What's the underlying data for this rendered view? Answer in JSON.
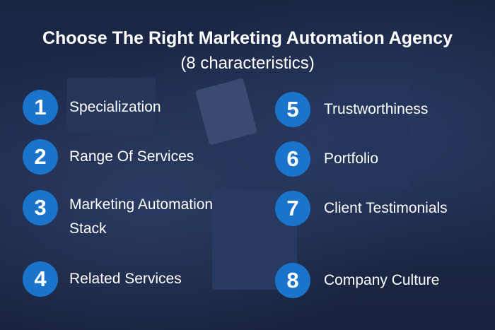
{
  "title": "Choose The Right Marketing Automation Agency",
  "subtitle": "(8 characteristics)",
  "colors": {
    "circle": "#1a74cc",
    "background": "#1c2a4a",
    "text": "#ffffff"
  },
  "items": [
    {
      "number": "1",
      "label": "Specialization"
    },
    {
      "number": "2",
      "label": "Range Of Services"
    },
    {
      "number": "3",
      "label": "Marketing Automation Stack"
    },
    {
      "number": "4",
      "label": "Related Services"
    },
    {
      "number": "5",
      "label": "Trustworthiness"
    },
    {
      "number": "6",
      "label": "Portfolio"
    },
    {
      "number": "7",
      "label": "Client Testimonials"
    },
    {
      "number": "8",
      "label": "Company Culture"
    }
  ]
}
